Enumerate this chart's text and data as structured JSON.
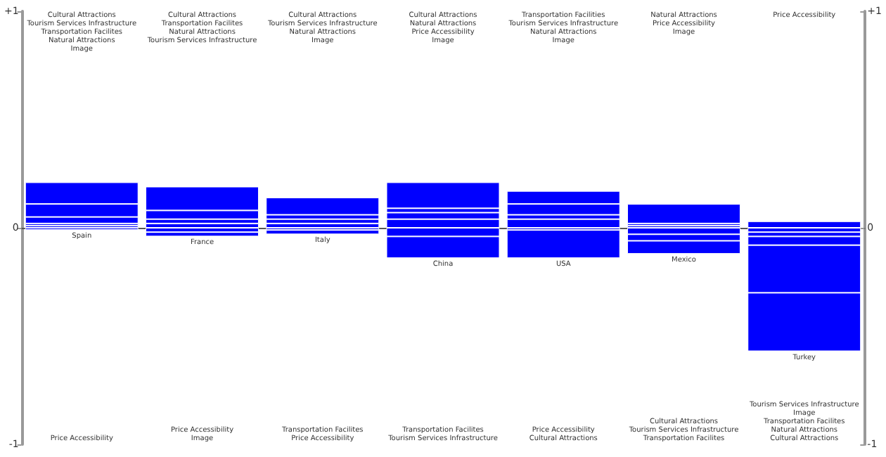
{
  "chart_data": {
    "type": "bar",
    "stacked": true,
    "categories": [
      "Spain",
      "France",
      "Italy",
      "China",
      "USA",
      "Mexico",
      "Turkey"
    ],
    "series": [
      {
        "color": "#0000ff",
        "values": [
          0.01,
          0.02,
          0.02,
          0.04,
          0.04,
          0.01,
          0.03
        ]
      },
      {
        "color": "#0000ff",
        "values": [
          0.01,
          0.02,
          0.02,
          0.03,
          0.02,
          0.01,
          null
        ]
      },
      {
        "color": "#0000ff",
        "values": [
          0.03,
          0.04,
          0.02,
          0.02,
          0.05,
          0.09,
          null
        ]
      },
      {
        "color": "#0000ff",
        "values": [
          0.06,
          0.11,
          0.08,
          0.12,
          0.06,
          null,
          null
        ]
      },
      {
        "color": "#0000ff",
        "values": [
          0.1,
          null,
          null,
          null,
          null,
          null,
          null
        ]
      },
      {
        "color": "#0000ff",
        "values": [
          -0.01,
          -0.02,
          -0.01,
          -0.04,
          -0.01,
          -0.03,
          -0.02
        ]
      },
      {
        "color": "#0000ff",
        "values": [
          null,
          -0.02,
          -0.02,
          -0.1,
          -0.13,
          -0.03,
          -0.02
        ]
      },
      {
        "color": "#0000ff",
        "values": [
          null,
          null,
          null,
          null,
          null,
          -0.06,
          -0.04
        ]
      },
      {
        "color": "#0000ff",
        "values": [
          null,
          null,
          null,
          null,
          null,
          null,
          -0.22
        ]
      },
      {
        "color": "#0000ff",
        "values": [
          null,
          null,
          null,
          null,
          null,
          null,
          -0.27
        ]
      }
    ],
    "ylim": [
      -1,
      1
    ],
    "yticks": [
      -1,
      0,
      {
        "value": 1,
        "label": "+1"
      }
    ],
    "y2lim": [
      -1,
      1
    ],
    "y2ticks": [
      -1,
      0,
      {
        "value": 1,
        "label": "+1"
      }
    ],
    "annotations": [
      "Cultural Attractions\nTourism Services Infrastructure\nTransportation Facilites\nNatural Attractions\nImage",
      "Cultural Attractions\nTransportation Facilites\nNatural Attractions\nTourism Services Infrastructure",
      "Cultural Attractions\nTourism Services Infrastructure\nNatural Attractions\nImage",
      "Cultural Attractions\nNatural Attractions\nPrice Accessibility\nImage",
      "Transportation Facilities\nTourism Services Infrastructure\nNatural Attractions\nImage",
      "Natural Attractions\nPrice Accessibility\nImage",
      "Price Accessibility",
      "Price Accessibility",
      "Price Accessibility\nImage",
      "Transportation Facilites\nPrice Accessibility",
      "Transportation Facilites\nTourism Services Infrastructure",
      "Price Accessibility\nCultural Attractions",
      "Cultural Attractions\nTourism Services Infrastructure\nTransportation Facilites",
      "Tourism Services Infrastructure\nImage\nTransportation Facilites\nNatural Attractions\nCultural Attractions"
    ]
  }
}
